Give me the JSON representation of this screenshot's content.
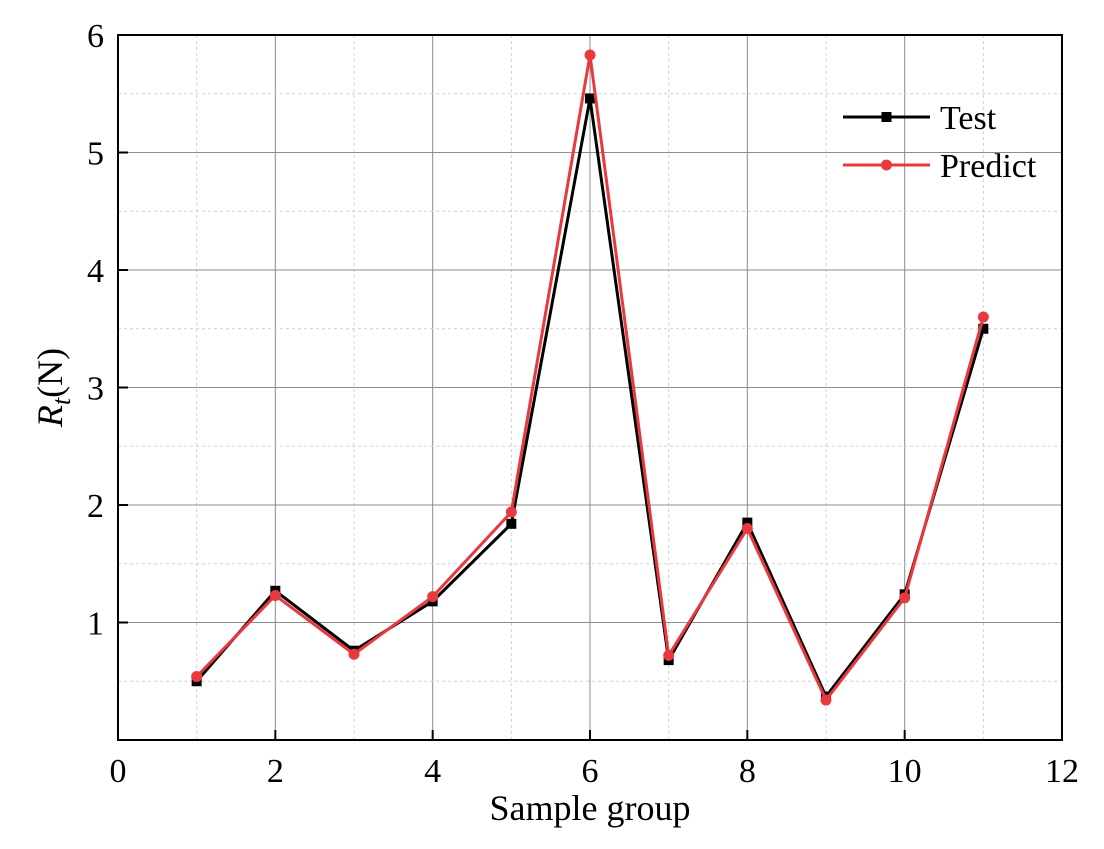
{
  "chart_data": {
    "type": "line",
    "xlabel": "Sample group",
    "ylabel_main": "R",
    "ylabel_sub": "t",
    "ylabel_unit": "(N)",
    "xlim": [
      0,
      12
    ],
    "ylim": [
      0,
      6
    ],
    "x_ticks": [
      0,
      2,
      4,
      6,
      8,
      10,
      12
    ],
    "y_ticks": [
      1,
      2,
      3,
      4,
      5,
      6
    ],
    "grid": true,
    "legend_position": "top-right",
    "x": [
      1,
      2,
      3,
      4,
      5,
      6,
      7,
      8,
      9,
      10,
      11
    ],
    "series": [
      {
        "name": "Test",
        "color": "#000000",
        "marker": "square",
        "values": [
          0.5,
          1.27,
          0.76,
          1.18,
          1.84,
          5.46,
          0.68,
          1.85,
          0.37,
          1.24,
          3.5
        ]
      },
      {
        "name": "Predict",
        "color": "#e8393e",
        "marker": "circle",
        "values": [
          0.54,
          1.23,
          0.73,
          1.22,
          1.94,
          5.83,
          0.72,
          1.8,
          0.34,
          1.21,
          3.6
        ]
      }
    ]
  }
}
